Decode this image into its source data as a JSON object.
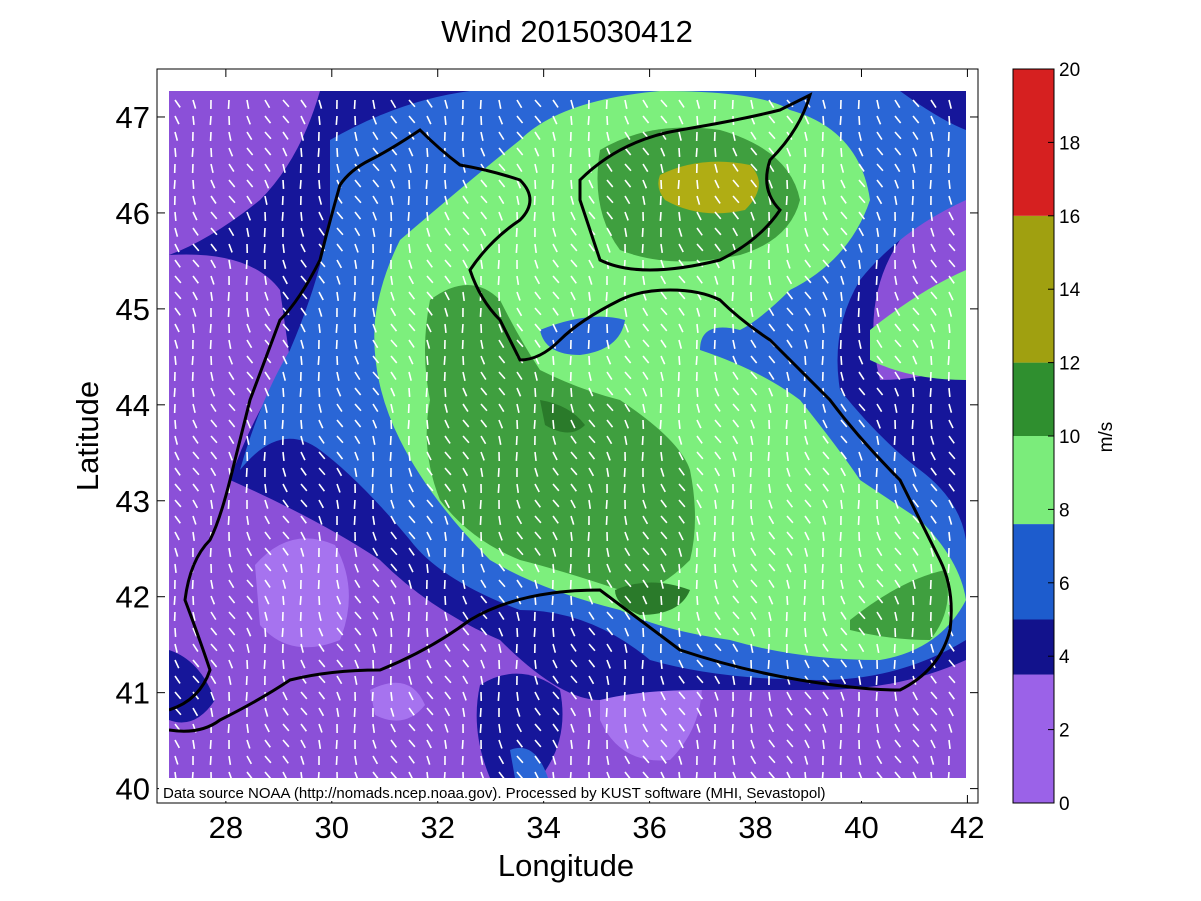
{
  "title": "Wind 2015030412",
  "xlabel": "Longitude",
  "ylabel": "Latitude",
  "x_ticks": [
    "28",
    "30",
    "32",
    "34",
    "36",
    "38",
    "40",
    "42"
  ],
  "y_ticks": [
    "40",
    "41",
    "42",
    "43",
    "44",
    "45",
    "46",
    "47"
  ],
  "colorbar": {
    "unit": "m/s",
    "ticks": [
      "0",
      "2",
      "4",
      "6",
      "8",
      "10",
      "12",
      "14",
      "16",
      "18",
      "20"
    ],
    "range": [
      0,
      20
    ],
    "bands": [
      {
        "from": 0,
        "to": 3.5,
        "color": "#9b62e8"
      },
      {
        "from": 3.5,
        "to": 5,
        "color": "#12128c"
      },
      {
        "from": 5,
        "to": 7.6,
        "color": "#1d5ccd"
      },
      {
        "from": 7.6,
        "to": 10,
        "color": "#7bec7b"
      },
      {
        "from": 10,
        "to": 12,
        "color": "#2f8f2f"
      },
      {
        "from": 12,
        "to": 16,
        "color": "#a0a010"
      },
      {
        "from": 16,
        "to": 20,
        "color": "#d62020"
      }
    ]
  },
  "footer_note": "Data source NOAA (http://nomads.ncep.noaa.gov). Processed by KUST software (MHI, Sevastopol)",
  "map": {
    "region": "Black Sea",
    "lon_range": [
      26.7,
      42.2
    ],
    "lat_range": [
      39.85,
      47.5
    ],
    "dominant_wind_direction": "from north-northwest",
    "max_wind_speed_approx": 14
  }
}
